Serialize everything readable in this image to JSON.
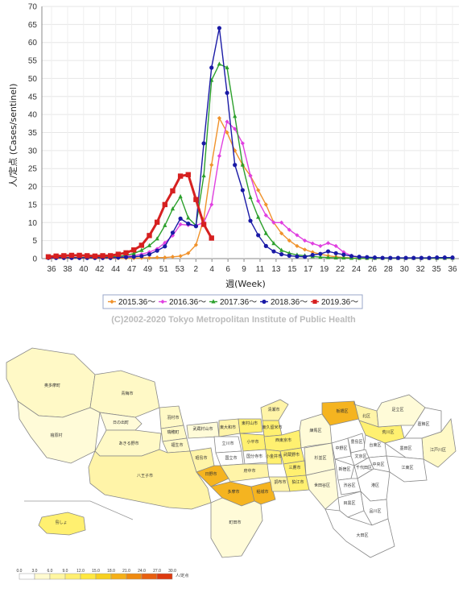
{
  "chart_data": {
    "type": "line",
    "ylabel": "人/定点 (Cases/sentinel)",
    "xlabel": "週(Week)",
    "ylim": [
      0,
      70
    ],
    "yticks": [
      0,
      5,
      10,
      15,
      20,
      25,
      30,
      35,
      40,
      45,
      50,
      55,
      60,
      65,
      70
    ],
    "xtick_labels": [
      "36",
      "38",
      "40",
      "42",
      "44",
      "47",
      "49",
      "51",
      "53",
      "2",
      "4",
      "6",
      "9",
      "11",
      "13",
      "15",
      "17",
      "19",
      "22",
      "24",
      "26",
      "28",
      "30",
      "32",
      "35",
      "36"
    ],
    "grid": true,
    "legend_position": "bottom",
    "copyright": "(C)2002-2020 Tokyo Metropolitan Institute of Public Health",
    "series": [
      {
        "name": "2015.36〜",
        "color": "#f0922b",
        "marker": "diamond",
        "values": [
          0.1,
          0.1,
          0.1,
          0.1,
          0.1,
          0.1,
          0.1,
          0.1,
          0.1,
          0.1,
          0.1,
          0.1,
          0.2,
          0.2,
          0.3,
          0.3,
          0.5,
          0.7,
          1.5,
          3.8,
          11,
          26,
          39,
          35,
          30,
          26,
          23,
          19,
          15,
          10,
          7,
          5,
          3.5,
          2.5,
          1.8,
          1.2,
          0.8,
          0.5,
          0.3,
          0.2,
          0.1,
          0.1,
          0.1,
          0.1,
          0.1,
          0.1,
          0.1,
          0.1,
          0.1,
          0.1,
          0.1,
          0.1,
          0.1
        ]
      },
      {
        "name": "2016.36〜",
        "color": "#e040e0",
        "marker": "diamond",
        "values": [
          0.2,
          0.2,
          0.3,
          0.3,
          0.3,
          0.3,
          0.3,
          0.4,
          0.4,
          0.5,
          0.6,
          0.8,
          1.2,
          1.8,
          2.7,
          4.4,
          6.4,
          9.5,
          9.3,
          9.2,
          10,
          15,
          28.5,
          38,
          36,
          32,
          23,
          16,
          12,
          10,
          10,
          8,
          6.5,
          5,
          4.2,
          3.5,
          4.3,
          3.5,
          1.8,
          0.8,
          0.4,
          0.3,
          0.2,
          0.2,
          0.1,
          0.1,
          0.1,
          0.1,
          0.1,
          0.1,
          0.1,
          0.1,
          0.1
        ]
      },
      {
        "name": "2017.36〜",
        "color": "#2ca02c",
        "marker": "triangle",
        "values": [
          0.3,
          0.3,
          0.3,
          0.3,
          0.3,
          0.3,
          0.3,
          0.4,
          0.5,
          0.6,
          0.9,
          1.4,
          2.3,
          3.6,
          5.5,
          9.2,
          13.8,
          17.2,
          11.3,
          9.2,
          23,
          49.5,
          54,
          53,
          39.5,
          26,
          17,
          11.5,
          7,
          4.2,
          2.3,
          1.5,
          1,
          0.8,
          0.6,
          0.4,
          0.3,
          0.2,
          0.2,
          0.1,
          0.1,
          0.1,
          0.1,
          0.1,
          0.1,
          0.1,
          0.1,
          0.1,
          0.1,
          0.1,
          0.1,
          0.1,
          0.1
        ]
      },
      {
        "name": "2018.36〜",
        "color": "#1a1aa6",
        "marker": "circle",
        "values": [
          0.2,
          0.2,
          0.2,
          0.2,
          0.2,
          0.2,
          0.2,
          0.2,
          0.2,
          0.3,
          0.4,
          0.5,
          0.7,
          1.2,
          2.2,
          3.4,
          7.2,
          11.1,
          9.7,
          9,
          32,
          53,
          64,
          46,
          26,
          19,
          10.5,
          6.5,
          3.5,
          2,
          1.2,
          0.8,
          0.6,
          0.5,
          1,
          1.3,
          2,
          1.5,
          1.1,
          0.7,
          0.5,
          0.4,
          0.3,
          0.2,
          0.2,
          0.2,
          0.2,
          0.2,
          0.2,
          0.2,
          0.3,
          0.3,
          0.3
        ]
      },
      {
        "name": "2019.36〜",
        "color": "#d62020",
        "marker": "square",
        "values": [
          0.5,
          0.7,
          0.8,
          0.9,
          0.9,
          0.8,
          0.7,
          0.8,
          0.8,
          1.2,
          1.6,
          2.4,
          3.7,
          6.4,
          10.1,
          15,
          18.8,
          22.9,
          23.3,
          16.4,
          9.5,
          5.7
        ]
      }
    ]
  },
  "map": {
    "legend_unit": "人/定点",
    "scale_labels": [
      "0.0",
      "3.0",
      "6.0",
      "9.0",
      "12.0",
      "15.0",
      "18.0",
      "21.0",
      "24.0",
      "27.0",
      "30.0"
    ],
    "scale_colors": [
      "#ffffff",
      "#fffbd0",
      "#fff6a0",
      "#ffef70",
      "#ffe840",
      "#f7d020",
      "#f5b018",
      "#ef8a10",
      "#e86010",
      "#dd3a10"
    ],
    "regions": [
      {
        "name": "奥多摩町",
        "color": "#fff9c6"
      },
      {
        "name": "青梅市",
        "color": "#fff9c6"
      },
      {
        "name": "檜原村",
        "color": "#fffbd8"
      },
      {
        "name": "日の出町",
        "color": "#fffbd8"
      },
      {
        "name": "あきる野市",
        "color": "#fff9c6"
      },
      {
        "name": "羽村市",
        "color": "#fff9c6"
      },
      {
        "name": "瑞穂町",
        "color": "#fff9c6"
      },
      {
        "name": "福生市",
        "color": "#fff9c6"
      },
      {
        "name": "八王子市",
        "color": "#fff4a8"
      },
      {
        "name": "昭島市",
        "color": "#fff4a8"
      },
      {
        "name": "武蔵村山市",
        "color": "#fffbd8"
      },
      {
        "name": "東大和市",
        "color": "#fff4a8"
      },
      {
        "name": "東村山市",
        "color": "#fff070"
      },
      {
        "name": "清瀬市",
        "color": "#fff4a8"
      },
      {
        "name": "東久留米市",
        "color": "#fff070"
      },
      {
        "name": "立川市",
        "color": "#ffffff"
      },
      {
        "name": "国立市",
        "color": "#ffffff"
      },
      {
        "name": "小平市",
        "color": "#fff070"
      },
      {
        "name": "西東京市",
        "color": "#fff070"
      },
      {
        "name": "日野市",
        "color": "#f5b420"
      },
      {
        "name": "国分寺市",
        "color": "#ffffff"
      },
      {
        "name": "小金井市",
        "color": "#fff070"
      },
      {
        "name": "武蔵野市",
        "color": "#fff070"
      },
      {
        "name": "府中市",
        "color": "#fff4a8"
      },
      {
        "name": "三鷹市",
        "color": "#fff070"
      },
      {
        "name": "多摩市",
        "color": "#f5b420"
      },
      {
        "name": "稲城市",
        "color": "#f5b420"
      },
      {
        "name": "調布市",
        "color": "#fff4a8"
      },
      {
        "name": "狛江市",
        "color": "#fff070"
      },
      {
        "name": "町田市",
        "color": "#fffbd8"
      },
      {
        "name": "練馬区",
        "color": "#fffbd8"
      },
      {
        "name": "板橋区",
        "color": "#f5b420"
      },
      {
        "name": "杉並区",
        "color": "#fffbd8"
      },
      {
        "name": "中野区",
        "color": "#ffffff"
      },
      {
        "name": "世田谷区",
        "color": "#fffbd8"
      },
      {
        "name": "北区",
        "color": "#fff4a8"
      },
      {
        "name": "豊島区",
        "color": "#ffffff"
      },
      {
        "name": "荒川区",
        "color": "#fff070"
      },
      {
        "name": "足立区",
        "color": "#fffbd8"
      },
      {
        "name": "葛飾区",
        "color": "#ffffff"
      },
      {
        "name": "江戸川区",
        "color": "#fff9c6"
      },
      {
        "name": "墨田区",
        "color": "#ffffff"
      },
      {
        "name": "台東区",
        "color": "#ffffff"
      },
      {
        "name": "文京区",
        "color": "#ffffff"
      },
      {
        "name": "新宿区",
        "color": "#ffffff"
      },
      {
        "name": "千代田区",
        "color": "#ffffff"
      },
      {
        "name": "中央区",
        "color": "#ffffff"
      },
      {
        "name": "江東区",
        "color": "#ffffff"
      },
      {
        "name": "渋谷区",
        "color": "#ffffff"
      },
      {
        "name": "港区",
        "color": "#ffffff"
      },
      {
        "name": "目黒区",
        "color": "#ffffff"
      },
      {
        "name": "品川区",
        "color": "#ffffff"
      },
      {
        "name": "大田区",
        "color": "#ffffff"
      },
      {
        "name": "島しょ",
        "color": "#fff070"
      }
    ]
  }
}
